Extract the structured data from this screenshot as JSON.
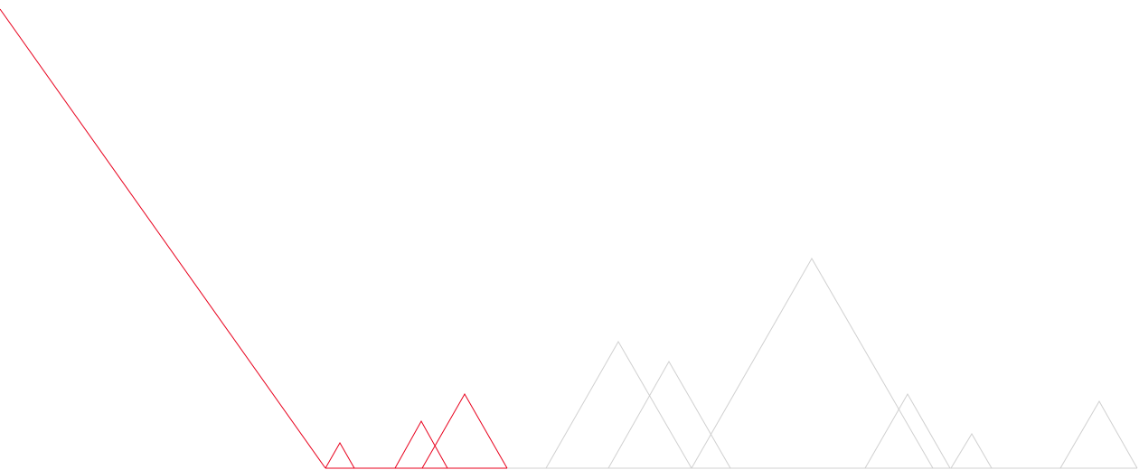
{
  "colors": {
    "highlight": "#e8001c",
    "muted": "#d0d0d0",
    "background": "#ffffff"
  }
}
